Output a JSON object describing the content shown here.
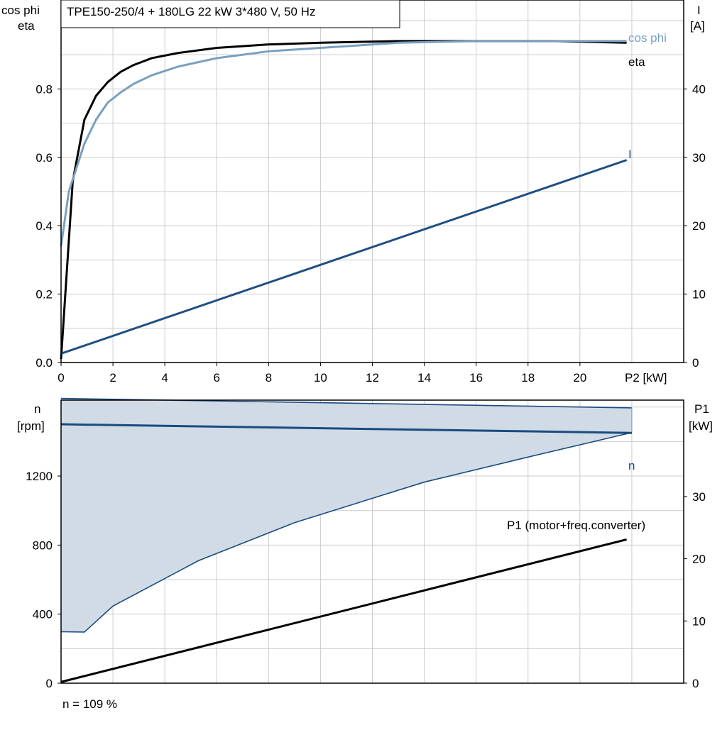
{
  "title": "TPE150-250/4 + 180LG   22 kW   3*480 V, 50 Hz",
  "footnote": "n = 109 %",
  "colors": {
    "eta": "#000000",
    "cosphi": "#7a9fbf",
    "current": "#1f4e82",
    "speed": "#1a4b80",
    "band_fill": "#d0dbe6",
    "p1": "#000000",
    "grid": "#cccccc"
  },
  "chart_data": [
    {
      "type": "line",
      "x_axis": {
        "label": "P2 [kW]",
        "ticks": [
          "0",
          "2",
          "4",
          "6",
          "8",
          "10",
          "12",
          "14",
          "16",
          "18",
          "20"
        ],
        "lim": [
          0,
          24
        ]
      },
      "y_left": {
        "label_line1": "cos phi",
        "label_line2": "eta",
        "ticks": [
          "0.0",
          "0.2",
          "0.4",
          "0.6",
          "0.8"
        ],
        "lim": [
          0,
          1.06
        ]
      },
      "y_right": {
        "label_line1": "I",
        "label_line2": "[A]",
        "ticks": [
          "0",
          "10",
          "20",
          "30",
          "40"
        ],
        "lim": [
          0,
          53
        ]
      },
      "grid": true,
      "series": [
        {
          "name": "eta",
          "axis": "left",
          "x": [
            0,
            0.45,
            0.9,
            1.35,
            1.8,
            2.3,
            2.8,
            3.5,
            4.5,
            6,
            8,
            10,
            13,
            16,
            19,
            21.8
          ],
          "y": [
            0.01,
            0.53,
            0.71,
            0.78,
            0.82,
            0.85,
            0.87,
            0.89,
            0.905,
            0.92,
            0.93,
            0.935,
            0.94,
            0.94,
            0.94,
            0.935
          ]
        },
        {
          "name": "cos phi",
          "axis": "left",
          "x": [
            0,
            0.3,
            0.6,
            0.9,
            1.35,
            1.8,
            2.3,
            2.8,
            3.5,
            4.5,
            6,
            8,
            10,
            13,
            16,
            19,
            21.8
          ],
          "y": [
            0.34,
            0.5,
            0.57,
            0.64,
            0.71,
            0.76,
            0.79,
            0.815,
            0.84,
            0.865,
            0.89,
            0.91,
            0.92,
            0.935,
            0.94,
            0.94,
            0.94
          ]
        },
        {
          "name": "I",
          "axis": "right",
          "x": [
            0,
            21.8
          ],
          "y": [
            1.3,
            29.6
          ]
        }
      ]
    },
    {
      "type": "line",
      "x_lim": [
        0,
        24
      ],
      "y_left": {
        "label_line1": "n",
        "label_line2": "[rpm]",
        "ticks": [
          "0",
          "400",
          "800",
          "1200"
        ],
        "lim": [
          0,
          1640
        ]
      },
      "y_right": {
        "label_line1": "P1",
        "label_line2": "[kW]",
        "ticks": [
          "0",
          "10",
          "20",
          "30"
        ],
        "lim": [
          0,
          45.5
        ]
      },
      "grid": true,
      "band_upper": {
        "x": [
          0,
          22
        ],
        "y": [
          1650,
          1595
        ]
      },
      "band_lower": {
        "x": [
          0,
          0.9,
          2,
          5.3,
          9,
          14,
          18,
          22
        ],
        "y": [
          298,
          296,
          447,
          710,
          930,
          1165,
          1310,
          1452
        ]
      },
      "series": [
        {
          "name": "n",
          "axis": "left",
          "x": [
            0,
            22
          ],
          "y": [
            1500,
            1450
          ]
        },
        {
          "name": "P1 (motor+freq.converter)",
          "axis": "right",
          "x": [
            0,
            21.8
          ],
          "y": [
            0.2,
            23.1
          ]
        }
      ]
    }
  ]
}
